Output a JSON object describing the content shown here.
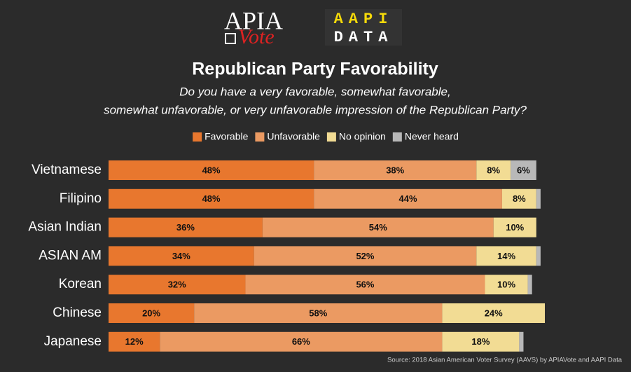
{
  "header": {
    "logo_left": [
      "APIA",
      "Vote"
    ],
    "logo_right": [
      "AAPI",
      "DATA"
    ]
  },
  "chart_data": {
    "type": "stacked-bar-horizontal",
    "title": "Republican Party Favorability",
    "subtitle": [
      "Do you have a very favorable, somewhat favorable,",
      "somewhat unfavorable, or very unfavorable impression of the Republican Party?"
    ],
    "categories": [
      "Vietnamese",
      "Filipino",
      "Asian Indian",
      "ASIAN AM",
      "Korean",
      "Chinese",
      "Japanese"
    ],
    "series": [
      {
        "name": "Favorable",
        "color": "#e8772e",
        "values": [
          48,
          48,
          36,
          34,
          32,
          20,
          12
        ],
        "value_labels": [
          "48%",
          "48%",
          "36%",
          "34%",
          "32%",
          "20%",
          "12%"
        ]
      },
      {
        "name": "Unfavorable",
        "color": "#eb9a62",
        "values": [
          38,
          44,
          54,
          52,
          56,
          58,
          66
        ],
        "value_labels": [
          "38%",
          "44%",
          "54%",
          "52%",
          "56%",
          "58%",
          "66%"
        ]
      },
      {
        "name": "No opinion",
        "color": "#f2dc94",
        "values": [
          8,
          8,
          10,
          14,
          10,
          24,
          18
        ],
        "value_labels": [
          "8%",
          "8%",
          "10%",
          "14%",
          "10%",
          "24%",
          "18%"
        ]
      },
      {
        "name": "Never heard",
        "color": "#b8b8b8",
        "values": [
          6,
          1,
          0,
          1,
          1,
          0,
          1
        ],
        "value_labels": [
          "6%",
          null,
          null,
          null,
          null,
          null,
          null
        ]
      }
    ],
    "legend": "top",
    "source": "Source: 2018 Asian American Voter Survey (AAVS) by APIAVote and AAPI Data"
  }
}
